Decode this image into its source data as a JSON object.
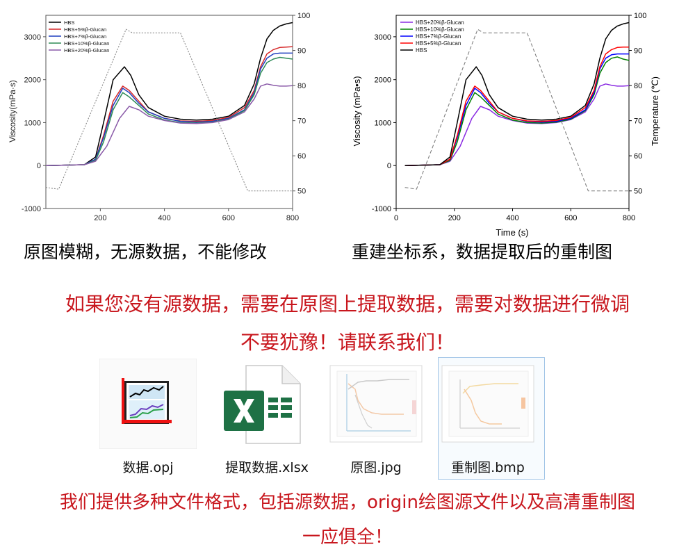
{
  "chart_data": [
    {
      "type": "line",
      "variant": "original-blurry",
      "xlabel": "",
      "ylabel": "Viscosity(mPa·s)",
      "y2label": "",
      "xlim": [
        30,
        800
      ],
      "ylim": [
        -1000,
        3500
      ],
      "y2lim": [
        45,
        100
      ],
      "xticks": [
        200,
        400,
        600,
        800
      ],
      "yticks": [
        -1000,
        0,
        1000,
        2000,
        3000
      ],
      "y2ticks": [
        50,
        60,
        70,
        80,
        90,
        100
      ],
      "legend_position": "top-left",
      "grid": false,
      "series": [
        {
          "name": "HBS",
          "color": "#000000",
          "x": [
            30,
            150,
            185,
            210,
            240,
            275,
            295,
            320,
            350,
            400,
            450,
            500,
            550,
            600,
            650,
            680,
            700,
            720,
            740,
            760,
            780,
            800
          ],
          "y": [
            0,
            20,
            200,
            1000,
            2000,
            2300,
            2100,
            1650,
            1350,
            1150,
            1080,
            1060,
            1080,
            1150,
            1400,
            1900,
            2500,
            2950,
            3150,
            3250,
            3300,
            3330
          ]
        },
        {
          "name": "HBS+5%β-Glucan",
          "color": "#d62728",
          "x": [
            30,
            150,
            185,
            210,
            240,
            270,
            290,
            320,
            350,
            400,
            450,
            500,
            550,
            600,
            650,
            680,
            700,
            720,
            740,
            760,
            780,
            800
          ],
          "y": [
            0,
            20,
            150,
            700,
            1500,
            1850,
            1750,
            1500,
            1250,
            1100,
            1040,
            1030,
            1050,
            1120,
            1350,
            1750,
            2300,
            2600,
            2700,
            2750,
            2760,
            2770
          ]
        },
        {
          "name": "HBS+7%β-Glucan",
          "color": "#1f3fbf",
          "x": [
            30,
            150,
            185,
            210,
            240,
            270,
            290,
            320,
            350,
            400,
            450,
            500,
            550,
            600,
            650,
            680,
            700,
            720,
            740,
            760,
            780,
            800
          ],
          "y": [
            0,
            20,
            150,
            650,
            1400,
            1800,
            1700,
            1450,
            1250,
            1100,
            1030,
            1010,
            1030,
            1100,
            1300,
            1700,
            2250,
            2500,
            2600,
            2620,
            2620,
            2620
          ]
        },
        {
          "name": "HBS+10%β-Glucan",
          "color": "#2e8b57",
          "x": [
            30,
            150,
            185,
            210,
            240,
            270,
            290,
            320,
            350,
            400,
            450,
            500,
            550,
            600,
            650,
            680,
            700,
            720,
            740,
            760,
            780,
            800
          ],
          "y": [
            0,
            20,
            120,
            550,
            1300,
            1700,
            1600,
            1400,
            1200,
            1060,
            1000,
            990,
            1010,
            1080,
            1280,
            1650,
            2150,
            2400,
            2480,
            2520,
            2500,
            2480
          ]
        },
        {
          "name": "HBS+20%β-Glucan",
          "color": "#8a5aa8",
          "x": [
            30,
            150,
            185,
            220,
            260,
            290,
            320,
            350,
            400,
            450,
            500,
            550,
            600,
            650,
            680,
            700,
            720,
            740,
            760,
            780,
            800
          ],
          "y": [
            0,
            20,
            100,
            450,
            1100,
            1380,
            1300,
            1150,
            1050,
            990,
            980,
            1000,
            1070,
            1250,
            1550,
            1850,
            1900,
            1870,
            1850,
            1850,
            1860
          ]
        },
        {
          "name": "",
          "color": "#888888",
          "dashed": true,
          "axis": "y2",
          "x": [
            30,
            70,
            280,
            300,
            450,
            660,
            800
          ],
          "y": [
            51,
            50.5,
            96,
            95,
            95,
            50,
            50
          ]
        }
      ]
    },
    {
      "type": "line",
      "variant": "reconstructed",
      "xlabel": "Time (s)",
      "ylabel": "Viscosity (mPa•s)",
      "y2label": "Temperature (℃)",
      "xlim": [
        0,
        800
      ],
      "ylim": [
        -1000,
        3500
      ],
      "y2lim": [
        45,
        100
      ],
      "xticks": [
        0,
        200,
        400,
        600,
        800
      ],
      "yticks": [
        -1000,
        0,
        1000,
        2000,
        3000
      ],
      "y2ticks": [
        50,
        60,
        70,
        80,
        90,
        100
      ],
      "legend_position": "top-left",
      "grid": false,
      "series": [
        {
          "name": "HBS+20%β-Glucan",
          "color": "#8a2be2",
          "x": [
            30,
            150,
            185,
            220,
            260,
            290,
            320,
            350,
            400,
            450,
            500,
            550,
            600,
            650,
            680,
            700,
            720,
            740,
            760,
            780,
            800
          ],
          "y": [
            0,
            20,
            100,
            450,
            1100,
            1380,
            1300,
            1150,
            1050,
            990,
            980,
            1000,
            1070,
            1250,
            1550,
            1850,
            1900,
            1870,
            1850,
            1850,
            1860
          ]
        },
        {
          "name": "HBS+10%β-Glucan",
          "color": "#008000",
          "x": [
            30,
            150,
            185,
            210,
            240,
            270,
            290,
            320,
            350,
            400,
            450,
            500,
            550,
            600,
            650,
            680,
            700,
            720,
            740,
            760,
            780,
            800
          ],
          "y": [
            0,
            20,
            120,
            550,
            1300,
            1700,
            1600,
            1400,
            1200,
            1060,
            1000,
            990,
            1010,
            1080,
            1280,
            1650,
            2150,
            2400,
            2500,
            2530,
            2480,
            2450
          ]
        },
        {
          "name": "HBS+7%β-Glucan",
          "color": "#0000ff",
          "x": [
            30,
            150,
            185,
            210,
            240,
            270,
            290,
            320,
            350,
            400,
            450,
            500,
            550,
            600,
            650,
            680,
            700,
            720,
            740,
            760,
            780,
            800
          ],
          "y": [
            0,
            20,
            150,
            650,
            1400,
            1800,
            1700,
            1450,
            1250,
            1100,
            1030,
            1010,
            1030,
            1100,
            1300,
            1700,
            2250,
            2500,
            2580,
            2600,
            2600,
            2600
          ]
        },
        {
          "name": "HBS+5%β-Glucan",
          "color": "#ff0000",
          "x": [
            30,
            150,
            185,
            210,
            240,
            270,
            290,
            320,
            350,
            400,
            450,
            500,
            550,
            600,
            650,
            680,
            700,
            720,
            740,
            760,
            780,
            800
          ],
          "y": [
            0,
            20,
            150,
            700,
            1500,
            1850,
            1750,
            1500,
            1250,
            1100,
            1040,
            1030,
            1050,
            1120,
            1350,
            1750,
            2300,
            2600,
            2700,
            2750,
            2760,
            2760
          ]
        },
        {
          "name": "HBS",
          "color": "#000000",
          "x": [
            30,
            150,
            185,
            210,
            240,
            275,
            295,
            320,
            350,
            400,
            450,
            500,
            550,
            600,
            650,
            680,
            700,
            720,
            740,
            760,
            780,
            800
          ],
          "y": [
            0,
            20,
            200,
            1000,
            2000,
            2300,
            2100,
            1650,
            1350,
            1150,
            1080,
            1060,
            1080,
            1150,
            1400,
            1900,
            2500,
            2950,
            3150,
            3250,
            3300,
            3330
          ]
        },
        {
          "name": "",
          "color": "#808080",
          "dashed": true,
          "axis": "y2",
          "x": [
            30,
            70,
            280,
            300,
            450,
            660,
            800
          ],
          "y": [
            51,
            50.5,
            96,
            95,
            95,
            50,
            50
          ]
        }
      ]
    }
  ],
  "captions": {
    "left": "原图模糊，无源数据，不能修改",
    "right": "重建坐标系，数据提取后的重制图"
  },
  "promo": {
    "line1": "如果您没有源数据，需要在原图上提取数据，需要对数据进行微调",
    "line2": "不要犹豫！请联系我们！"
  },
  "files": [
    {
      "name": "数据.opj",
      "icon": "origin-project-icon"
    },
    {
      "name": "提取数据.xlsx",
      "icon": "excel-icon"
    },
    {
      "name": "原图.jpg",
      "icon": "image-thumbnail"
    },
    {
      "name": "重制图.bmp",
      "icon": "image-thumbnail",
      "selected": true
    }
  ],
  "footer": {
    "line1": "我们提供多种文件格式，包括源数据，origin绘图源文件以及高清重制图",
    "line2": "一应俱全！"
  },
  "colors": {
    "promo_text": "#c8161d",
    "excel_green": "#1e7145",
    "selection_border": "#9fc3e6"
  }
}
